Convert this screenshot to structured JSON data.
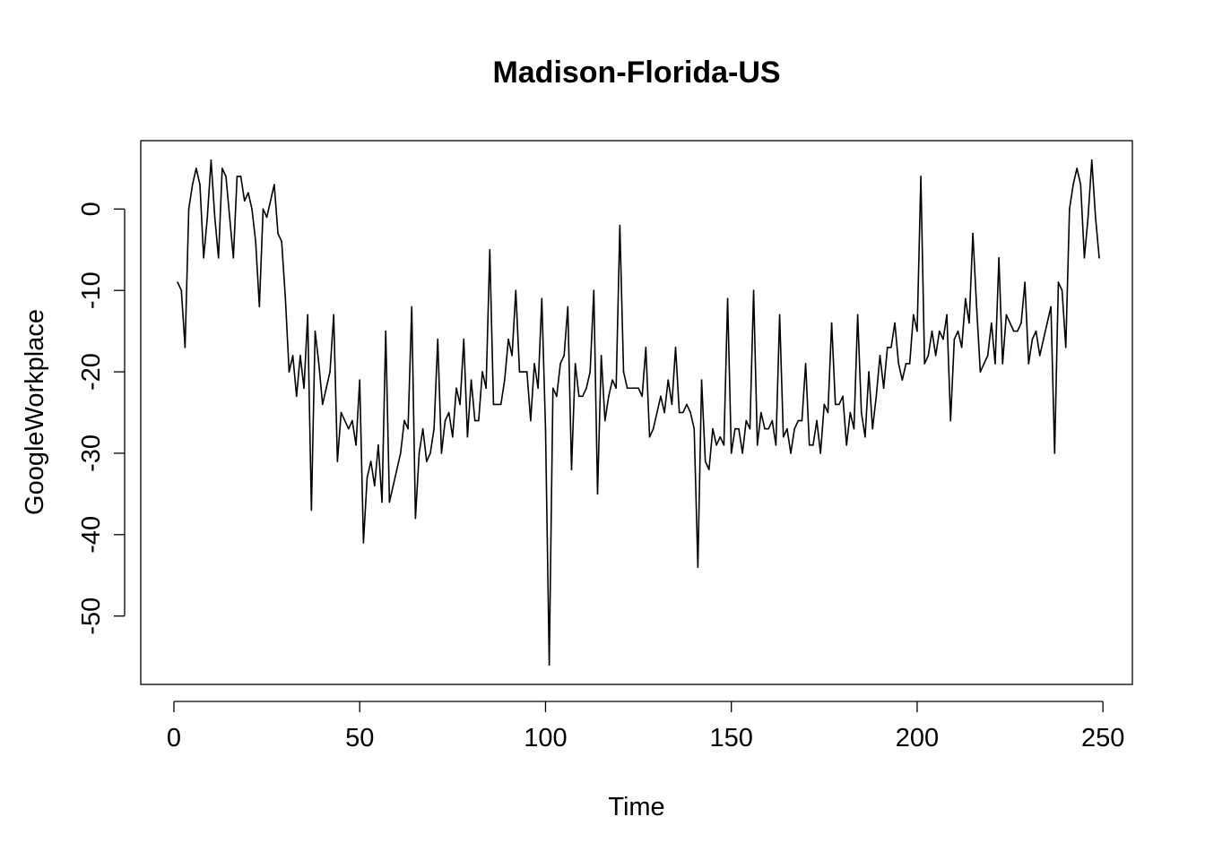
{
  "chart_data": {
    "type": "line",
    "title": "Madison-Florida-US",
    "xlabel": "Time",
    "ylabel": "GoogleWorkplace",
    "xlim": [
      -8.92,
      257.92
    ],
    "ylim": [
      -58.4,
      8.4
    ],
    "x_ticks": [
      0,
      50,
      100,
      150,
      200,
      250
    ],
    "y_ticks": [
      0,
      -10,
      -20,
      -30,
      -40,
      -50
    ],
    "x_tick_labels": [
      "0",
      "50",
      "100",
      "150",
      "200",
      "250"
    ],
    "y_tick_labels": [
      "0",
      "-10",
      "-20",
      "-30",
      "-40",
      "-50"
    ],
    "grid": false,
    "legend": "none",
    "line_color": "#000000",
    "series": [
      {
        "x_start": 1,
        "x_step": 1,
        "values": [
          -9,
          -10,
          -17,
          0,
          3,
          5,
          3,
          -6,
          -1,
          6,
          -1,
          -6,
          5,
          4,
          -1,
          -6,
          4,
          4,
          1,
          2,
          0,
          -4,
          -12,
          0,
          -1,
          1,
          3,
          -3,
          -4,
          -11,
          -20,
          -18,
          -23,
          -18,
          -22,
          -13,
          -37,
          -15,
          -19,
          -24,
          -22,
          -20,
          -13,
          -31,
          -25,
          -26,
          -27,
          -26,
          -29,
          -21,
          -41,
          -33,
          -31,
          -34,
          -29,
          -36,
          -15,
          -36,
          -34,
          -32,
          -30,
          -26,
          -27,
          -12,
          -38,
          -30,
          -27,
          -31,
          -30,
          -27,
          -16,
          -30,
          -26,
          -25,
          -28,
          -22,
          -24,
          -16,
          -28,
          -21,
          -26,
          -26,
          -20,
          -22,
          -5,
          -24,
          -24,
          -24,
          -21,
          -16,
          -18,
          -10,
          -20,
          -20,
          -20,
          -26,
          -19,
          -22,
          -11,
          -27,
          -56,
          -22,
          -23,
          -19,
          -18,
          -12,
          -32,
          -19,
          -23,
          -23,
          -22,
          -20,
          -10,
          -35,
          -18,
          -26,
          -23,
          -21,
          -22,
          -2,
          -20,
          -22,
          -22,
          -22,
          -22,
          -23,
          -17,
          -28,
          -27,
          -25,
          -23,
          -25,
          -21,
          -24,
          -17,
          -25,
          -25,
          -24,
          -25,
          -27,
          -44,
          -21,
          -31,
          -32,
          -27,
          -29,
          -28,
          -29,
          -11,
          -30,
          -27,
          -27,
          -30,
          -26,
          -27,
          -10,
          -29,
          -25,
          -27,
          -27,
          -26,
          -29,
          -13,
          -28,
          -27,
          -30,
          -27,
          -26,
          -26,
          -19,
          -29,
          -29,
          -26,
          -30,
          -24,
          -25,
          -14,
          -24,
          -24,
          -23,
          -29,
          -25,
          -27,
          -13,
          -25,
          -28,
          -20,
          -27,
          -23,
          -18,
          -22,
          -17,
          -17,
          -14,
          -19,
          -21,
          -19,
          -19,
          -13,
          -15,
          4,
          -19,
          -18,
          -15,
          -18,
          -15,
          -16,
          -13,
          -26,
          -16,
          -15,
          -17,
          -11,
          -14,
          -3,
          -12,
          -20,
          -19,
          -18,
          -14,
          -19,
          -6,
          -19,
          -13,
          -14,
          -15,
          -15,
          -14,
          -9,
          -19,
          -16,
          -15,
          -18,
          -16,
          -14,
          -12,
          -30,
          -9,
          -10,
          -17,
          0,
          3,
          5,
          3,
          -6,
          -1,
          6,
          -1,
          -6
        ]
      }
    ]
  }
}
